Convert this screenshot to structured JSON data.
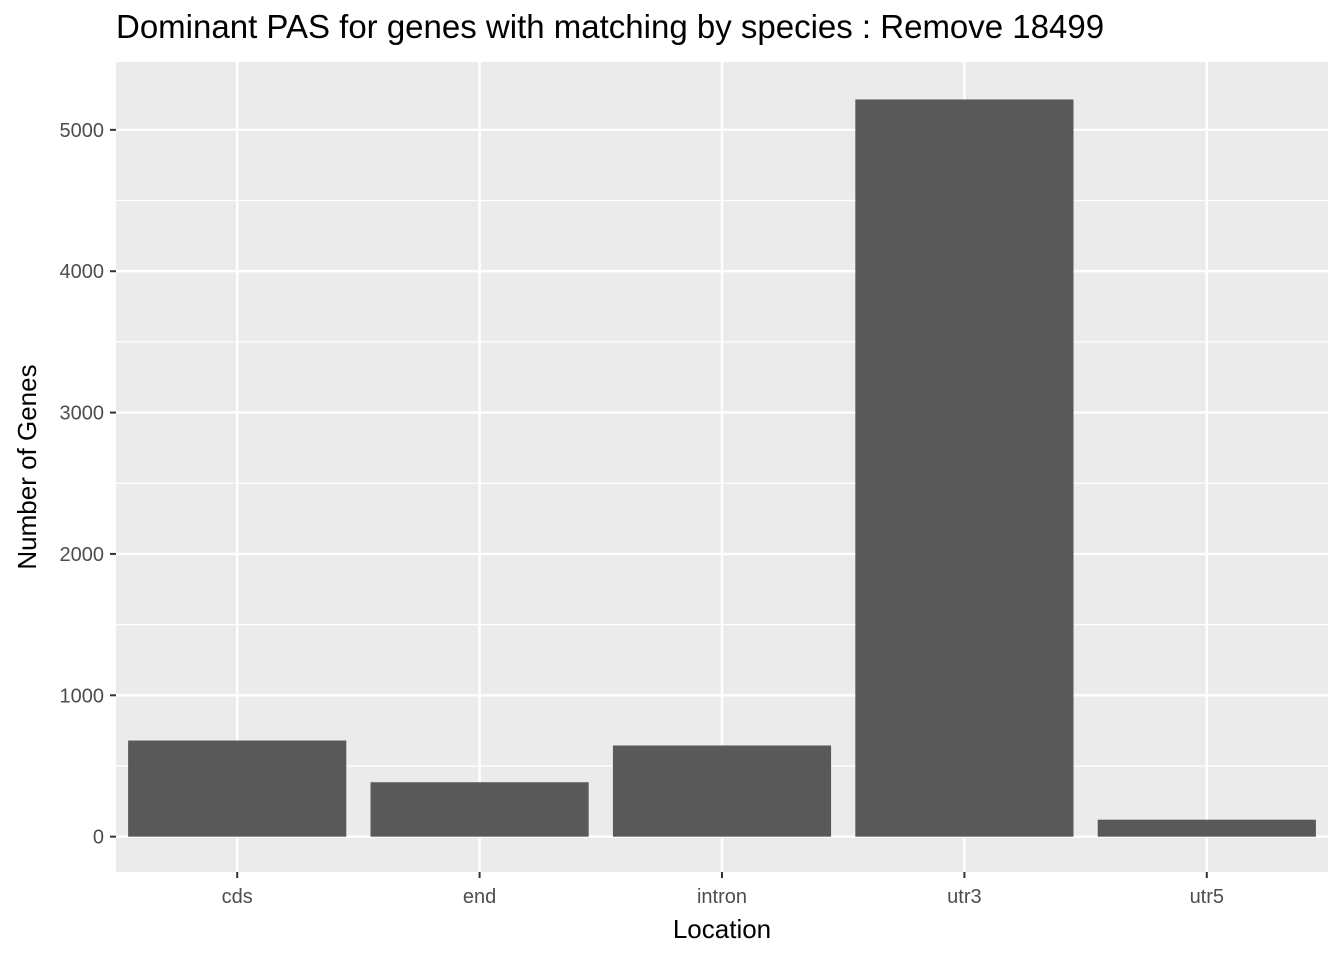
{
  "chart_data": {
    "type": "bar",
    "title": "Dominant PAS for genes with matching by species : Remove 18499",
    "xlabel": "Location",
    "ylabel": "Number of Genes",
    "categories": [
      "cds",
      "end",
      "intron",
      "utr3",
      "utr5"
    ],
    "values": [
      680,
      385,
      645,
      5215,
      120
    ],
    "ylim": [
      -250,
      5480
    ],
    "yticks": [
      0,
      1000,
      2000,
      3000,
      4000,
      5000
    ],
    "grid": true,
    "legend": "none",
    "colors": {
      "panel": "#EBEBEB",
      "grid": "#FFFFFF",
      "bar": "#595959",
      "tick": "#333333"
    }
  }
}
